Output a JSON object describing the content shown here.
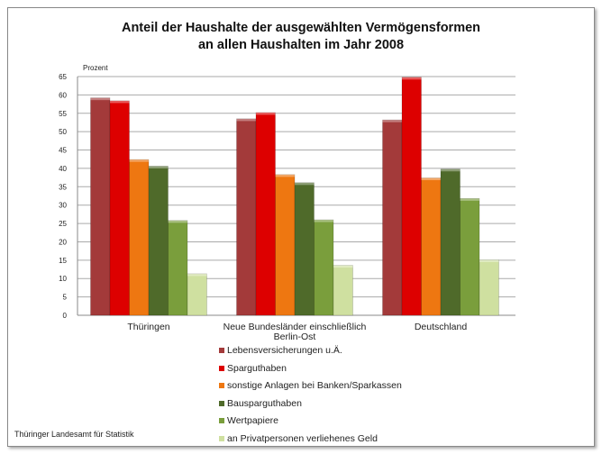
{
  "chart_data": {
    "type": "bar",
    "title": "Anteil der Haushalte der ausgewählten Vermögensformen an allen Haushalten im Jahr 2008",
    "title_lines": [
      "Anteil der Haushalte der ausgewählten Vermögensformen",
      "an allen Haushalten im Jahr 2008"
    ],
    "ylabel": "Prozent",
    "ylim": [
      0,
      65
    ],
    "yticks": [
      0,
      5,
      10,
      15,
      20,
      25,
      30,
      35,
      40,
      45,
      50,
      55,
      60,
      65
    ],
    "grid": true,
    "legend_placement": "bottom",
    "categories": [
      "Thüringen",
      "Neue Bundesländer einschließlich Berlin-Ost",
      "Deutschland"
    ],
    "category_lines": [
      [
        "Thüringen"
      ],
      [
        "Neue Bundesländer einschließlich",
        "Berlin-Ost"
      ],
      [
        "Deutschland"
      ]
    ],
    "series": [
      {
        "name": "Lebensversicherungen u.Ä.",
        "color": "#a33a3a",
        "values": [
          59.2,
          53.5,
          53.2
        ]
      },
      {
        "name": "Sparguthaben",
        "color": "#dd0000",
        "values": [
          58.4,
          55.2,
          64.8
        ]
      },
      {
        "name": "sonstige Anlagen bei Banken/Sparkassen",
        "color": "#ee7711",
        "values": [
          42.4,
          38.3,
          37.4
        ]
      },
      {
        "name": "Bausparguthaben",
        "color": "#4f6a2a",
        "values": [
          40.6,
          36.1,
          39.8
        ]
      },
      {
        "name": "Wertpapiere",
        "color": "#7a9e3c",
        "values": [
          25.8,
          26.0,
          31.8
        ]
      },
      {
        "name": "an Privatpersonen verliehenes Geld",
        "color": "#cfe0a0",
        "values": [
          11.3,
          13.6,
          15.1
        ]
      }
    ]
  },
  "footer": "Thüringer Landesamt für Statistik"
}
